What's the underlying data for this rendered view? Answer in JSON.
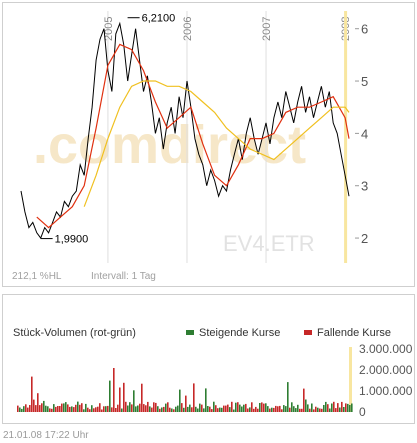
{
  "chart_data": [
    {
      "type": "line",
      "symbol": "EV4.ETR",
      "watermark": ".comdirect",
      "performance_label": "212,1 %HL",
      "interval_label": "Intervall: 1 Tag",
      "x_ticks": [
        "2005",
        "2006",
        "2007",
        "2008"
      ],
      "y_ticks": [
        "2",
        "3",
        "4",
        "5",
        "6"
      ],
      "ylim": [
        1.6,
        6.3
      ],
      "annotations": [
        {
          "label": "6,2100",
          "x": 2005.35,
          "y": 6.21
        },
        {
          "label": "1,9900",
          "x": 2004.25,
          "y": 1.99
        }
      ],
      "series": [
        {
          "name": "",
          "color": "#000000",
          "x": [
            2003.9,
            2003.95,
            2004.0,
            2004.05,
            2004.1,
            2004.15,
            2004.2,
            2004.25,
            2004.3,
            2004.35,
            2004.4,
            2004.45,
            2004.5,
            2004.55,
            2004.6,
            2004.65,
            2004.7,
            2004.75,
            2004.8,
            2004.85,
            2004.9,
            2004.95,
            2005.0,
            2005.05,
            2005.1,
            2005.15,
            2005.2,
            2005.25,
            2005.3,
            2005.35,
            2005.4,
            2005.45,
            2005.5,
            2005.55,
            2005.6,
            2005.65,
            2005.7,
            2005.75,
            2005.8,
            2005.85,
            2005.9,
            2005.95,
            2006.0,
            2006.05,
            2006.1,
            2006.15,
            2006.2,
            2006.25,
            2006.3,
            2006.35,
            2006.4,
            2006.45,
            2006.5,
            2006.55,
            2006.6,
            2006.65,
            2006.7,
            2006.75,
            2006.8,
            2006.85,
            2006.9,
            2006.95,
            2007.0,
            2007.05,
            2007.1,
            2007.15,
            2007.2,
            2007.25,
            2007.3,
            2007.35,
            2007.4,
            2007.45,
            2007.5,
            2007.55,
            2007.6,
            2007.65,
            2007.7,
            2007.75,
            2007.8,
            2007.85,
            2007.9,
            2007.95,
            2008.0,
            2008.05
          ],
          "values": [
            2.9,
            2.5,
            2.2,
            2.3,
            2.1,
            2.0,
            2.2,
            2.1,
            2.3,
            2.5,
            2.4,
            2.7,
            2.6,
            2.8,
            2.9,
            3.4,
            3.2,
            3.9,
            4.5,
            5.4,
            5.8,
            6.0,
            5.2,
            4.8,
            5.9,
            6.1,
            5.7,
            5.0,
            5.5,
            6.0,
            5.4,
            4.8,
            5.1,
            4.6,
            4.0,
            4.3,
            3.7,
            4.2,
            4.5,
            4.0,
            4.7,
            4.3,
            5.0,
            4.5,
            3.9,
            3.6,
            3.4,
            3.0,
            3.3,
            3.1,
            2.8,
            3.0,
            2.9,
            3.3,
            3.6,
            3.9,
            3.5,
            4.0,
            4.3,
            3.9,
            3.6,
            3.9,
            4.2,
            3.8,
            4.3,
            4.6,
            4.3,
            4.8,
            4.5,
            4.2,
            4.6,
            4.9,
            4.4,
            4.7,
            4.3,
            4.6,
            4.9,
            4.5,
            4.8,
            4.2,
            4.0,
            3.6,
            3.2,
            2.8
          ]
        },
        {
          "name": "",
          "color": "#e03010",
          "x": [
            2004.1,
            2004.25,
            2004.4,
            2004.55,
            2004.7,
            2004.85,
            2005.0,
            2005.15,
            2005.3,
            2005.45,
            2005.6,
            2005.75,
            2005.9,
            2006.05,
            2006.2,
            2006.35,
            2006.5,
            2006.65,
            2006.8,
            2006.95,
            2007.1,
            2007.25,
            2007.4,
            2007.55,
            2007.7,
            2007.85,
            2008.0,
            2008.05
          ],
          "values": [
            2.4,
            2.2,
            2.4,
            2.6,
            3.0,
            4.1,
            5.3,
            5.7,
            5.6,
            5.2,
            4.6,
            4.1,
            4.3,
            4.5,
            3.8,
            3.2,
            3.0,
            3.4,
            3.9,
            3.9,
            4.0,
            4.4,
            4.5,
            4.5,
            4.6,
            4.7,
            4.3,
            3.9
          ]
        },
        {
          "name": "",
          "color": "#f0c020",
          "x": [
            2004.7,
            2004.85,
            2005.0,
            2005.15,
            2005.3,
            2005.45,
            2005.6,
            2005.75,
            2005.9,
            2006.05,
            2006.2,
            2006.35,
            2006.5,
            2006.65,
            2006.8,
            2006.95,
            2007.1,
            2007.25,
            2007.4,
            2007.55,
            2007.7,
            2007.85,
            2008.0,
            2008.05
          ],
          "values": [
            2.6,
            3.2,
            3.9,
            4.5,
            4.9,
            5.0,
            5.0,
            4.9,
            4.9,
            4.8,
            4.6,
            4.4,
            4.1,
            3.9,
            3.7,
            3.6,
            3.5,
            3.7,
            3.9,
            4.1,
            4.3,
            4.5,
            4.5,
            4.4
          ]
        }
      ]
    },
    {
      "type": "bar",
      "title": "Stück-Volumen (rot-grün)",
      "legend": [
        {
          "label": "Steigende Kurse",
          "color": "#2e7d32"
        },
        {
          "label": "Fallende Kurse",
          "color": "#c62828"
        }
      ],
      "y_ticks": [
        "0",
        "1.000.000",
        "2.000.000",
        "3.000.000"
      ],
      "ylim": [
        0,
        3200000
      ],
      "bars": {
        "start_year": 2003.9,
        "end_year": 2008.05,
        "seed": 7
      }
    }
  ],
  "timestamp": "21.01.08    17:22 Uhr"
}
